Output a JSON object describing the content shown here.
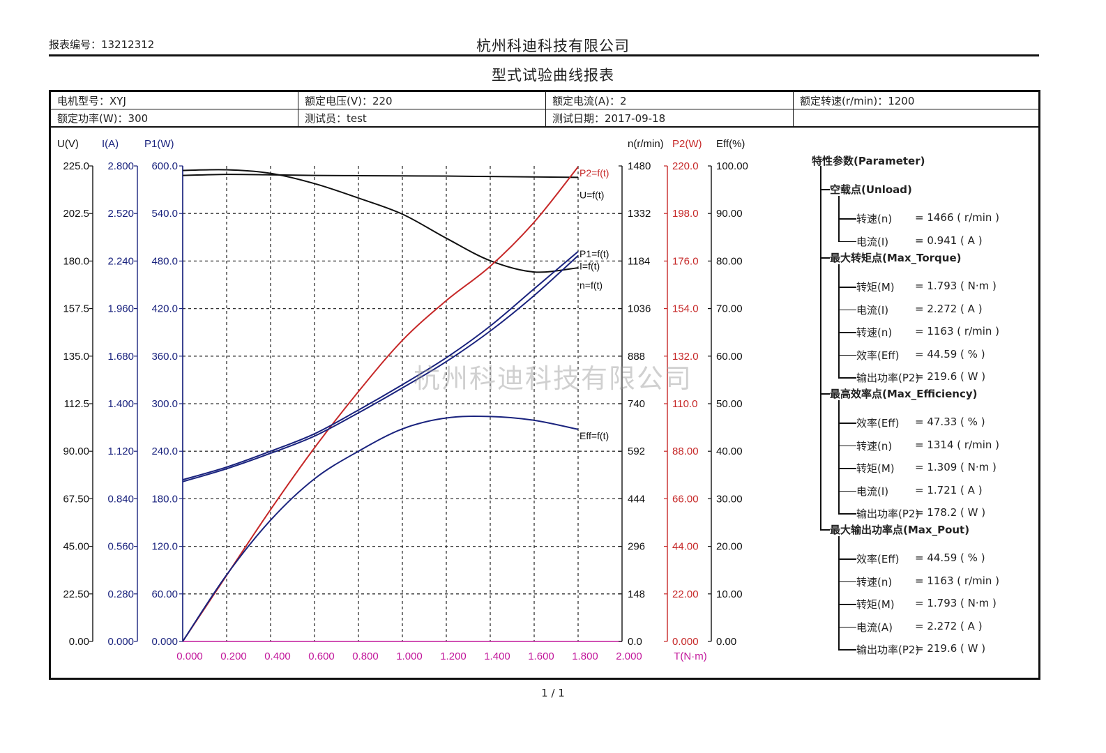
{
  "header": {
    "report_no": "报表编号：13212312",
    "company": "杭州科迪科技有限公司",
    "title": "型式试验曲线报表"
  },
  "info": {
    "row1": [
      "电机型号：XYJ",
      "额定电压(V)：220",
      "额定电流(A)：2",
      "额定转速(r/min)：1200"
    ],
    "row2": [
      "额定功率(W)：300",
      "测试员：test",
      "测试日期：2017-09-18",
      ""
    ]
  },
  "watermark": "杭州科迪科技有限公司",
  "page_no": "1 / 1",
  "colors": {
    "black": "#111111",
    "navy": "#1a237e",
    "red": "#c62828",
    "magenta": "#c2189b",
    "grid": "#333333"
  },
  "params": {
    "title": "特性参数(Parameter)",
    "groups": [
      {
        "name": "空载点(Unload)",
        "items": [
          {
            "label": "转速(n)",
            "value": "=  1466  ( r/min )"
          },
          {
            "label": "电流(I)",
            "value": "=  0.941  ( A )"
          }
        ]
      },
      {
        "name": "最大转矩点(Max_Torque)",
        "items": [
          {
            "label": "转矩(M)",
            "value": "=  1.793  ( N·m )"
          },
          {
            "label": "电流(I)",
            "value": "=  2.272  ( A )"
          },
          {
            "label": "转速(n)",
            "value": "=  1163  ( r/min )"
          },
          {
            "label": "效率(Eff)",
            "value": "=  44.59  ( % )"
          },
          {
            "label": "输出功率(P2)",
            "value": "=  219.6  ( W )"
          }
        ]
      },
      {
        "name": "最高效率点(Max_Efficiency)",
        "items": [
          {
            "label": "效率(Eff)",
            "value": "=  47.33  ( % )"
          },
          {
            "label": "转速(n)",
            "value": "=  1314  ( r/min )"
          },
          {
            "label": "转矩(M)",
            "value": "=  1.309  ( N·m )"
          },
          {
            "label": "电流(I)",
            "value": "=  1.721  ( A )"
          },
          {
            "label": "输出功率(P2)",
            "value": "=  178.2  ( W )"
          }
        ]
      },
      {
        "name": "最大输出功率点(Max_Pout)",
        "items": [
          {
            "label": "效率(Eff)",
            "value": "=  44.59  ( % )"
          },
          {
            "label": "转速(n)",
            "value": "=  1163  ( r/min )"
          },
          {
            "label": "转矩(M)",
            "value": "=  1.793  ( N·m )"
          },
          {
            "label": "电流(A)",
            "value": "=  2.272  ( A )"
          },
          {
            "label": "输出功率(P2)",
            "value": "=  219.6  ( W )"
          }
        ]
      }
    ]
  },
  "chart_data": {
    "type": "line",
    "grid": true,
    "x": {
      "label": "T(N·m)",
      "range": [
        0,
        2.0
      ],
      "ticks": [
        "0.000",
        "0.200",
        "0.400",
        "0.600",
        "0.800",
        "1.000",
        "1.200",
        "1.400",
        "1.600",
        "1.800",
        "2.000"
      ]
    },
    "left_axes": [
      {
        "unit": "U(V)",
        "range": [
          0,
          225
        ],
        "ticks": [
          "0.00",
          "22.50",
          "45.00",
          "67.50",
          "90.00",
          "112.5",
          "135.0",
          "157.5",
          "180.0",
          "202.5",
          "225.0"
        ]
      },
      {
        "unit": "I(A)",
        "range": [
          0,
          2.8
        ],
        "ticks": [
          "0.000",
          "0.280",
          "0.560",
          "0.840",
          "1.120",
          "1.400",
          "1.680",
          "1.960",
          "2.240",
          "2.520",
          "2.800"
        ]
      },
      {
        "unit": "P1(W)",
        "range": [
          0,
          600
        ],
        "ticks": [
          "0.000",
          "60.00",
          "120.0",
          "180.0",
          "240.0",
          "300.0",
          "360.0",
          "420.0",
          "480.0",
          "540.0",
          "600.0"
        ]
      }
    ],
    "right_axes": [
      {
        "unit": "n(r/min)",
        "range": [
          0,
          1480
        ],
        "ticks": [
          "0.0",
          "148",
          "296",
          "444",
          "592",
          "740",
          "888",
          "1036",
          "1184",
          "1332",
          "1480"
        ]
      },
      {
        "unit": "P2(W)",
        "range": [
          0,
          220
        ],
        "ticks": [
          "0.000",
          "22.00",
          "44.00",
          "66.00",
          "88.00",
          "110.0",
          "132.0",
          "154.0",
          "176.0",
          "198.0",
          "220.0"
        ]
      },
      {
        "unit": "Eff(%)",
        "range": [
          0,
          100
        ],
        "ticks": [
          "0.00",
          "10.00",
          "20.00",
          "30.00",
          "40.00",
          "50.00",
          "60.00",
          "70.00",
          "80.00",
          "90.00",
          "100.00"
        ]
      }
    ],
    "series": [
      {
        "name": "U=f(t)",
        "axis": "U(V)",
        "color": "black",
        "x": [
          0,
          0.2,
          0.4,
          0.6,
          0.8,
          1.0,
          1.2,
          1.4,
          1.6,
          1.8
        ],
        "y": [
          220.5,
          221.0,
          220.8,
          220.5,
          220.4,
          220.3,
          220.2,
          220.0,
          219.8,
          219.6
        ]
      },
      {
        "name": "n=f(t)",
        "axis": "n(r/min)",
        "color": "black",
        "x": [
          0,
          0.2,
          0.4,
          0.6,
          0.8,
          1.0,
          1.2,
          1.4,
          1.6,
          1.8
        ],
        "y": [
          1466,
          1468,
          1457,
          1425,
          1380,
          1330,
          1255,
          1185,
          1150,
          1163
        ]
      },
      {
        "name": "P2=f(t)",
        "axis": "P2(W)",
        "color": "red",
        "x": [
          0,
          0.2,
          0.4,
          0.6,
          0.8,
          1.0,
          1.2,
          1.4,
          1.6,
          1.8
        ],
        "y": [
          0,
          30.6,
          61.0,
          89.6,
          115.6,
          139.3,
          157.7,
          173.6,
          194.0,
          219.6
        ]
      },
      {
        "name": "P1=f(t)",
        "axis": "P1(W)",
        "color": "navy",
        "x": [
          0,
          0.2,
          0.4,
          0.6,
          0.8,
          1.0,
          1.2,
          1.4,
          1.6,
          1.8
        ],
        "y": [
          204,
          220,
          240,
          262,
          292,
          324,
          358,
          398,
          445,
          492
        ]
      },
      {
        "name": "I=f(t)",
        "axis": "I(A)",
        "color": "navy",
        "x": [
          0,
          0.2,
          0.4,
          0.6,
          0.8,
          1.0,
          1.2,
          1.4,
          1.6,
          1.8
        ],
        "y": [
          0.941,
          1.017,
          1.108,
          1.209,
          1.346,
          1.493,
          1.648,
          1.828,
          2.037,
          2.272
        ]
      },
      {
        "name": "Eff=f(t)",
        "axis": "Eff(%)",
        "color": "navy",
        "x": [
          0,
          0.2,
          0.4,
          0.6,
          0.8,
          1.0,
          1.2,
          1.4,
          1.6,
          1.8
        ],
        "y": [
          0,
          14.0,
          25.5,
          34.2,
          40.0,
          44.7,
          47.0,
          47.3,
          46.5,
          44.6
        ]
      }
    ]
  }
}
